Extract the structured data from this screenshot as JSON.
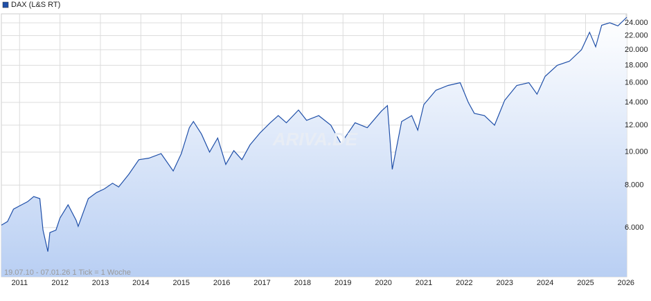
{
  "chart_data": {
    "type": "line",
    "title": "DAX (L&S RT)",
    "footnote": "19.07.10 - 07.01.26   1 Tick = 1 Woche",
    "watermark": "ARIVA.DE",
    "log_scale": true,
    "grid": true,
    "legend": "top-left",
    "y_axis_side": "right",
    "area_fill": true,
    "x": [
      2010.55,
      2010.7,
      2010.85,
      2011.0,
      2011.2,
      2011.35,
      2011.5,
      2011.58,
      2011.7,
      2011.75,
      2011.9,
      2012.0,
      2012.2,
      2012.4,
      2012.45,
      2012.7,
      2012.9,
      2013.1,
      2013.3,
      2013.45,
      2013.7,
      2013.95,
      2014.2,
      2014.5,
      2014.8,
      2015.0,
      2015.2,
      2015.3,
      2015.5,
      2015.7,
      2015.9,
      2016.1,
      2016.3,
      2016.5,
      2016.7,
      2016.95,
      2017.2,
      2017.4,
      2017.6,
      2017.9,
      2018.1,
      2018.4,
      2018.7,
      2018.95,
      2019.3,
      2019.6,
      2019.95,
      2020.1,
      2020.22,
      2020.45,
      2020.7,
      2020.85,
      2021.0,
      2021.3,
      2021.6,
      2021.9,
      2022.1,
      2022.25,
      2022.5,
      2022.75,
      2023.0,
      2023.3,
      2023.6,
      2023.8,
      2024.0,
      2024.3,
      2024.6,
      2024.9,
      2025.1,
      2025.25,
      2025.4,
      2025.6,
      2025.8,
      2026.02
    ],
    "series": [
      {
        "name": "DAX (L&S RT)",
        "color": "#1f4fa8",
        "values": [
          6100,
          6250,
          6800,
          6950,
          7150,
          7400,
          7300,
          5900,
          5100,
          5800,
          5900,
          6400,
          7000,
          6300,
          6050,
          7300,
          7600,
          7800,
          8100,
          7900,
          8600,
          9500,
          9600,
          9900,
          8800,
          9900,
          11800,
          12300,
          11300,
          10000,
          11000,
          9200,
          10100,
          9500,
          10500,
          11400,
          12200,
          12800,
          12200,
          13300,
          12400,
          12800,
          12000,
          10600,
          12200,
          11800,
          13200,
          13700,
          8900,
          12300,
          12800,
          11600,
          13800,
          15200,
          15700,
          16000,
          14000,
          13000,
          12800,
          12000,
          14200,
          15700,
          16000,
          14800,
          16700,
          18000,
          18500,
          20000,
          22500,
          20400,
          23600,
          24000,
          23500,
          24900
        ]
      }
    ],
    "xlim": [
      2010.55,
      2026.02
    ],
    "xticks": [
      2011,
      2012,
      2013,
      2014,
      2015,
      2016,
      2017,
      2018,
      2019,
      2020,
      2021,
      2022,
      2023,
      2024,
      2025,
      2026
    ],
    "ylim": [
      4300,
      25500
    ],
    "yticks": [
      {
        "value": 6000,
        "label": "6.000"
      },
      {
        "value": 8000,
        "label": "8.000"
      },
      {
        "value": 10000,
        "label": "10.000"
      },
      {
        "value": 12000,
        "label": "12.000"
      },
      {
        "value": 14000,
        "label": "14.000"
      },
      {
        "value": 16000,
        "label": "16.000"
      },
      {
        "value": 18000,
        "label": "18.000"
      },
      {
        "value": 20000,
        "label": "20.000"
      },
      {
        "value": 22000,
        "label": "22.000"
      },
      {
        "value": 24000,
        "label": "24.000"
      }
    ]
  }
}
